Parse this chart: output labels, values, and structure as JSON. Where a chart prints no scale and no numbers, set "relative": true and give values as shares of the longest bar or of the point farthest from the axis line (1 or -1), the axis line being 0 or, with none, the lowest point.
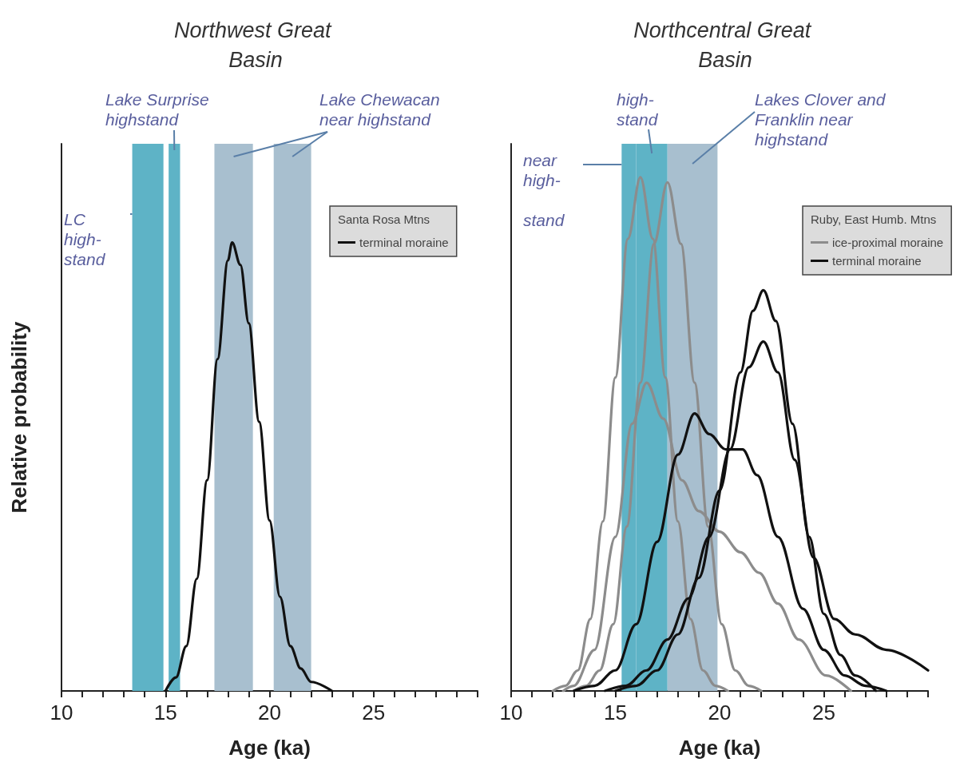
{
  "chart_data": [
    {
      "type": "line",
      "title": "Northwest Great Basin",
      "xlabel": "Age (ka)",
      "ylabel": "Relative probability",
      "relative": true,
      "legend": "top right",
      "legend_title": "Santa Rosa Mtns",
      "xlim": [
        10,
        30
      ],
      "xticks": [
        10,
        {
          "value": 11,
          "label": null
        },
        {
          "value": 12,
          "label": null
        },
        {
          "value": 13,
          "label": null
        },
        {
          "value": 14,
          "label": null
        },
        15,
        {
          "value": 16,
          "label": null
        },
        {
          "value": 17,
          "label": null
        },
        {
          "value": 18,
          "label": null
        },
        {
          "value": 19,
          "label": null
        },
        20,
        {
          "value": 21,
          "label": null
        },
        {
          "value": 22,
          "label": null
        },
        {
          "value": 23,
          "label": null
        },
        {
          "value": 24,
          "label": null
        },
        25,
        {
          "value": 26,
          "label": null
        },
        {
          "value": 27,
          "label": null
        },
        {
          "value": 28,
          "label": null
        },
        {
          "value": 29,
          "label": null
        },
        {
          "value": 30,
          "label": null
        }
      ],
      "series": [
        {
          "name": "terminal moraine",
          "color": "#111111",
          "x": [
            15.0,
            15.5,
            16.0,
            16.5,
            17.0,
            17.5,
            18.0,
            18.2,
            18.6,
            19.0,
            19.5,
            20.0,
            20.5,
            21.0,
            21.5,
            22.0,
            23.0
          ],
          "values": [
            0,
            0.03,
            0.1,
            0.25,
            0.47,
            0.74,
            0.96,
            1,
            0.95,
            0.82,
            0.6,
            0.38,
            0.21,
            0.1,
            0.05,
            0.02,
            0
          ]
        }
      ],
      "bands": [
        {
          "axis": "x",
          "from": 13.4,
          "to": 14.9,
          "label": "LC high- stand",
          "color": "#5eb3c6"
        },
        {
          "axis": "x",
          "from": 15.15,
          "to": 15.7,
          "label": "Lake Surprise highstand",
          "color": "#5eb3c6"
        },
        {
          "axis": "x",
          "from": 17.35,
          "to": 19.2,
          "label": "Lake Chewacan near highstand",
          "color": "#a8bfcf"
        },
        {
          "axis": "x",
          "from": 20.2,
          "to": 22.0,
          "label": null,
          "color": "#a8bfcf"
        }
      ]
    },
    {
      "type": "line",
      "title": "Northcentral Great Basin",
      "xlabel": "Age (ka)",
      "relative": true,
      "legend": "top right",
      "legend_title": "Ruby, East Humb. Mtns",
      "xlim": [
        10,
        30
      ],
      "xticks": [
        10,
        {
          "value": 11,
          "label": null
        },
        {
          "value": 12,
          "label": null
        },
        {
          "value": 13,
          "label": null
        },
        {
          "value": 14,
          "label": null
        },
        15,
        {
          "value": 16,
          "label": null
        },
        {
          "value": 17,
          "label": null
        },
        {
          "value": 18,
          "label": null
        },
        {
          "value": 19,
          "label": null
        },
        20,
        {
          "value": 21,
          "label": null
        },
        {
          "value": 22,
          "label": null
        },
        {
          "value": 23,
          "label": null
        },
        {
          "value": 24,
          "label": null
        },
        25,
        {
          "value": 26,
          "label": null
        },
        {
          "value": 27,
          "label": null
        },
        {
          "value": 28,
          "label": null
        },
        {
          "value": 29,
          "label": null
        },
        {
          "value": 30,
          "label": null
        }
      ],
      "series": [
        {
          "color": "#8c8c8c",
          "x": [
            12.0,
            12.6,
            13.2,
            13.8,
            14.4,
            15.0,
            15.6,
            16.2,
            16.8,
            17.4,
            18.0,
            18.6,
            19.2,
            19.8,
            20.4
          ],
          "values": [
            0,
            0.01,
            0.04,
            0.14,
            0.33,
            0.61,
            0.88,
            1,
            0.88,
            0.61,
            0.33,
            0.14,
            0.04,
            0.01,
            0
          ]
        },
        {
          "name": "ice-proximal moraine",
          "color": "#8c8c8c",
          "x": [
            13.0,
            13.6,
            14.25,
            14.9,
            15.55,
            16.2,
            16.85,
            17.5,
            18.15,
            18.8,
            19.45,
            20.1,
            20.75,
            21.4,
            22.0
          ],
          "values": [
            0,
            0.01,
            0.04,
            0.13,
            0.32,
            0.6,
            0.87,
            0.99,
            0.87,
            0.6,
            0.32,
            0.13,
            0.04,
            0.01,
            0
          ]
        },
        {
          "color": "#8c8c8c",
          "x": [
            12.5,
            13.0,
            14.0,
            15.0,
            15.8,
            16.5,
            17.3,
            18.2,
            19.0,
            20.0,
            21.0,
            21.9,
            22.8,
            23.8,
            25.1,
            26.3
          ],
          "values": [
            0,
            0.01,
            0.08,
            0.3,
            0.52,
            0.6,
            0.53,
            0.41,
            0.35,
            0.31,
            0.27,
            0.23,
            0.17,
            0.1,
            0.03,
            0
          ]
        },
        {
          "name": "terminal moraine",
          "color": "#111111",
          "x": [
            15.0,
            16.0,
            17.0,
            18.0,
            19.0,
            20.0,
            21.0,
            21.6,
            22.1,
            22.7,
            23.5,
            24.3,
            25.0,
            25.8,
            26.5,
            27.5
          ],
          "values": [
            0,
            0.01,
            0.04,
            0.11,
            0.22,
            0.39,
            0.62,
            0.74,
            0.78,
            0.72,
            0.52,
            0.3,
            0.15,
            0.07,
            0.03,
            0
          ]
        },
        {
          "color": "#111111",
          "x": [
            14.5,
            15.5,
            16.5,
            17.5,
            18.5,
            19.5,
            20.5,
            21.4,
            22.1,
            22.8,
            23.6,
            24.5,
            25.5,
            26.5,
            28.0,
            30.0
          ],
          "values": [
            0,
            0.01,
            0.04,
            0.1,
            0.18,
            0.3,
            0.47,
            0.63,
            0.68,
            0.62,
            0.45,
            0.26,
            0.14,
            0.11,
            0.08,
            0.04
          ]
        },
        {
          "color": "#111111",
          "x": [
            13.0,
            14.0,
            15.0,
            16.0,
            17.0,
            18.0,
            18.8,
            19.5,
            20.3,
            21.1,
            21.8,
            22.8,
            24.0,
            25.0,
            26.0,
            27.0,
            28.0
          ],
          "values": [
            0,
            0.01,
            0.04,
            0.13,
            0.29,
            0.46,
            0.54,
            0.5,
            0.47,
            0.47,
            0.42,
            0.3,
            0.16,
            0.08,
            0.03,
            0.01,
            0
          ]
        }
      ],
      "bands": [
        {
          "axis": "x",
          "from": 15.3,
          "to": 16.0,
          "label": "near high- stand",
          "color": "#5eb3c6"
        },
        {
          "axis": "x",
          "from": 16.0,
          "to": 17.5,
          "label": "high- stand",
          "color": "#5eb3c6"
        },
        {
          "axis": "x",
          "from": 17.5,
          "to": 19.9,
          "label": "Lakes Clover and Franklin near highstand",
          "color": "#a8bfcf"
        }
      ]
    }
  ]
}
